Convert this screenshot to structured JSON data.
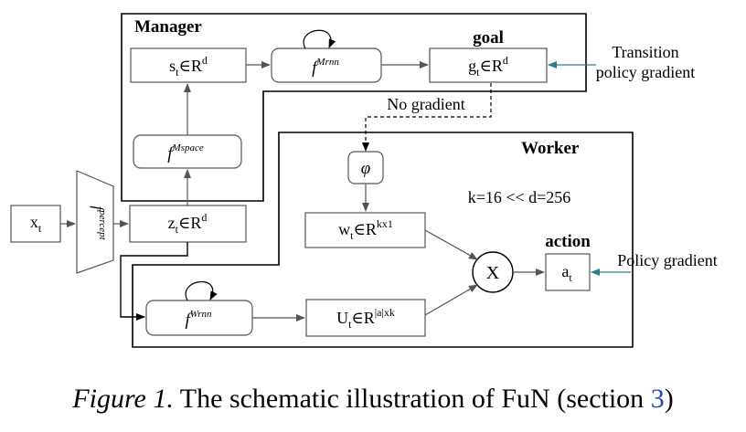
{
  "containers": {
    "manager_title": "Manager",
    "worker_title": "Worker"
  },
  "nodes": {
    "s": {
      "base": "s",
      "sub": "t",
      "rel": "∈R",
      "sup": "d"
    },
    "f_mrnn": {
      "f": "f",
      "sup": "Mrnn"
    },
    "g": {
      "base": "g",
      "sub": "t",
      "rel": "∈R",
      "sup": "d"
    },
    "goal_label": "goal",
    "f_mspace": {
      "f": "f",
      "sup": "Mspace"
    },
    "x": {
      "base": "x",
      "sub": "t"
    },
    "f_percept": {
      "f": "f",
      "sup": "percept"
    },
    "z": {
      "base": "z",
      "sub": "t",
      "rel": "∈R",
      "sup": "d"
    },
    "phi": "φ",
    "w": {
      "base": "w",
      "sub": "t",
      "rel": "∈R",
      "sup": "kx1"
    },
    "mult": "X",
    "a": {
      "base": "a",
      "sub": "t"
    },
    "action_label": "action",
    "f_wrnn": {
      "f": "f",
      "sup": "Wrnn"
    },
    "U": {
      "base": "U",
      "sub": "t",
      "rel": "∈R",
      "sup": "|a|xk"
    }
  },
  "annotations": {
    "transition_line1": "Transition",
    "transition_line2": "policy gradient",
    "no_gradient": "No gradient",
    "k_eq": "k=16 << d=256",
    "policy_gradient": "Policy gradient"
  },
  "caption": {
    "prefix": "Figure 1.",
    "text": " The schematic illustration of FuN (section ",
    "ref": "3",
    "suffix": ")"
  },
  "colors": {
    "gradient_arrow": "#2e7d8c",
    "caption_ref": "#2a46b8"
  }
}
